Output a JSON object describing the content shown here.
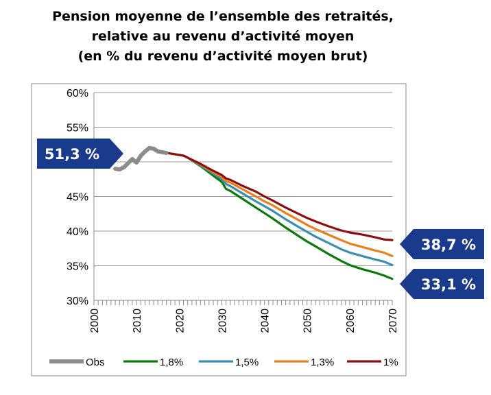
{
  "chart_data": {
    "type": "line",
    "title_lines": [
      "Pension moyenne de l’ensemble des retraités,",
      "relative au revenu d’activité moyen",
      "(en % du revenu d’activité moyen brut)"
    ],
    "xlabel": "",
    "ylabel": "",
    "xlim": [
      2000,
      2070
    ],
    "ylim": [
      30,
      60
    ],
    "x_ticks": [
      "2000",
      "2010",
      "2020",
      "2030",
      "2040",
      "2050",
      "2060",
      "2070"
    ],
    "y_ticks": [
      "30%",
      "35%",
      "40%",
      "45%",
      "50%",
      "55%",
      "60%"
    ],
    "grid": true,
    "legend_position": "bottom",
    "series": [
      {
        "name": "Obs",
        "color": "#8c8c8c",
        "x": [
          2005,
          2006,
          2007,
          2008,
          2009,
          2010,
          2011,
          2012,
          2013,
          2014,
          2015,
          2016,
          2017
        ],
        "y": [
          49.0,
          48.9,
          49.2,
          49.8,
          50.4,
          49.9,
          50.9,
          51.5,
          52.0,
          51.9,
          51.5,
          51.4,
          51.3
        ]
      },
      {
        "name": "1,8%",
        "color": "#0a7a0a",
        "x": [
          2017,
          2018,
          2019,
          2020,
          2021,
          2022,
          2025,
          2028,
          2030,
          2031,
          2032,
          2035,
          2038,
          2040,
          2042,
          2045,
          2048,
          2050,
          2052,
          2055,
          2058,
          2060,
          2063,
          2066,
          2068,
          2070
        ],
        "y": [
          51.3,
          51.2,
          51.1,
          51.0,
          50.9,
          50.6,
          49.4,
          48.0,
          47.1,
          46.1,
          45.8,
          44.6,
          43.4,
          42.6,
          41.8,
          40.5,
          39.3,
          38.5,
          37.8,
          36.7,
          35.7,
          35.1,
          34.5,
          34.0,
          33.6,
          33.1
        ]
      },
      {
        "name": "1,5%",
        "color": "#3a8fb0",
        "x": [
          2017,
          2018,
          2019,
          2020,
          2021,
          2022,
          2025,
          2028,
          2030,
          2031,
          2032,
          2035,
          2038,
          2040,
          2042,
          2045,
          2048,
          2050,
          2052,
          2055,
          2058,
          2060,
          2063,
          2066,
          2068,
          2070
        ],
        "y": [
          51.3,
          51.2,
          51.1,
          51.0,
          50.9,
          50.6,
          49.5,
          48.3,
          47.5,
          46.8,
          46.5,
          45.4,
          44.3,
          43.6,
          42.9,
          41.7,
          40.6,
          39.9,
          39.2,
          38.3,
          37.4,
          36.9,
          36.4,
          35.9,
          35.6,
          35.1
        ]
      },
      {
        "name": "1,3%",
        "color": "#e8801e",
        "x": [
          2017,
          2018,
          2019,
          2020,
          2021,
          2022,
          2025,
          2028,
          2030,
          2031,
          2032,
          2035,
          2038,
          2040,
          2042,
          2045,
          2048,
          2050,
          2052,
          2055,
          2058,
          2060,
          2063,
          2066,
          2068,
          2070
        ],
        "y": [
          51.3,
          51.2,
          51.1,
          51.0,
          50.9,
          50.6,
          49.6,
          48.5,
          47.8,
          47.2,
          47.0,
          46.0,
          45.0,
          44.3,
          43.7,
          42.6,
          41.6,
          40.9,
          40.3,
          39.5,
          38.7,
          38.2,
          37.7,
          37.2,
          36.9,
          36.4
        ]
      },
      {
        "name": "1%",
        "color": "#8b0f0f",
        "x": [
          2017,
          2018,
          2019,
          2020,
          2021,
          2022,
          2025,
          2028,
          2030,
          2031,
          2032,
          2035,
          2038,
          2040,
          2042,
          2045,
          2048,
          2050,
          2052,
          2055,
          2058,
          2060,
          2063,
          2066,
          2068,
          2070
        ],
        "y": [
          51.3,
          51.2,
          51.1,
          51.0,
          50.9,
          50.6,
          49.7,
          48.7,
          48.1,
          47.6,
          47.4,
          46.5,
          45.7,
          45.0,
          44.4,
          43.4,
          42.5,
          41.9,
          41.4,
          40.7,
          40.1,
          39.8,
          39.5,
          39.1,
          38.8,
          38.7
        ]
      }
    ],
    "annotations": [
      {
        "text": "51,3 %",
        "color": "#1a3a8c"
      },
      {
        "text": "38,7 %",
        "color": "#1a3a8c"
      },
      {
        "text": "33,1 %",
        "color": "#1a3a8c"
      }
    ]
  }
}
